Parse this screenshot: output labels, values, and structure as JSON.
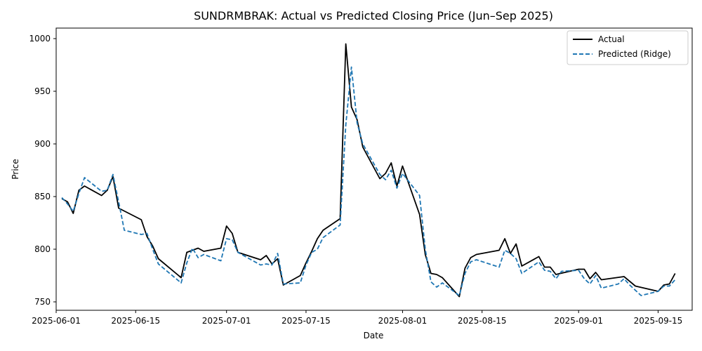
{
  "chart_data": {
    "type": "line",
    "title": "SUNDRMBRAK: Actual vs Predicted Closing Price (Jun–Sep 2025)",
    "xlabel": "Date",
    "ylabel": "Price",
    "xlim": [
      "2025-06-01",
      "2025-09-21"
    ],
    "ylim": [
      742,
      1010
    ],
    "x_ticks": [
      "2025-06-01",
      "2025-06-15",
      "2025-07-01",
      "2025-07-15",
      "2025-08-01",
      "2025-08-15",
      "2025-09-01",
      "2025-09-15"
    ],
    "y_ticks": [
      750,
      800,
      850,
      900,
      950,
      1000
    ],
    "grid": false,
    "legend_position": "top-right",
    "series": [
      {
        "name": "Actual",
        "color": "#000000",
        "style": "solid",
        "points": [
          [
            "2025-06-02",
            848
          ],
          [
            "2025-06-03",
            845
          ],
          [
            "2025-06-04",
            834
          ],
          [
            "2025-06-05",
            856
          ],
          [
            "2025-06-06",
            860
          ],
          [
            "2025-06-09",
            851
          ],
          [
            "2025-06-10",
            856
          ],
          [
            "2025-06-11",
            869
          ],
          [
            "2025-06-12",
            839
          ],
          [
            "2025-06-16",
            828
          ],
          [
            "2025-06-17",
            812
          ],
          [
            "2025-06-18",
            803
          ],
          [
            "2025-06-19",
            791
          ],
          [
            "2025-06-23",
            773
          ],
          [
            "2025-06-24",
            797
          ],
          [
            "2025-06-25",
            799
          ],
          [
            "2025-06-26",
            801
          ],
          [
            "2025-06-27",
            798
          ],
          [
            "2025-06-30",
            801
          ],
          [
            "2025-07-01",
            822
          ],
          [
            "2025-07-02",
            815
          ],
          [
            "2025-07-03",
            797
          ],
          [
            "2025-07-07",
            790
          ],
          [
            "2025-07-08",
            794
          ],
          [
            "2025-07-09",
            786
          ],
          [
            "2025-07-10",
            791
          ],
          [
            "2025-07-11",
            766
          ],
          [
            "2025-07-14",
            775
          ],
          [
            "2025-07-15",
            787
          ],
          [
            "2025-07-16",
            798
          ],
          [
            "2025-07-17",
            810
          ],
          [
            "2025-07-18",
            818
          ],
          [
            "2025-07-21",
            829
          ],
          [
            "2025-07-22",
            995
          ],
          [
            "2025-07-23",
            935
          ],
          [
            "2025-07-24",
            923
          ],
          [
            "2025-07-25",
            897
          ],
          [
            "2025-07-28",
            867
          ],
          [
            "2025-07-29",
            872
          ],
          [
            "2025-07-30",
            882
          ],
          [
            "2025-07-31",
            860
          ],
          [
            "2025-08-01",
            879
          ],
          [
            "2025-08-04",
            833
          ],
          [
            "2025-08-05",
            795
          ],
          [
            "2025-08-06",
            777
          ],
          [
            "2025-08-07",
            776
          ],
          [
            "2025-08-08",
            773
          ],
          [
            "2025-08-11",
            755
          ],
          [
            "2025-08-12",
            782
          ],
          [
            "2025-08-13",
            792
          ],
          [
            "2025-08-14",
            795
          ],
          [
            "2025-08-18",
            799
          ],
          [
            "2025-08-19",
            810
          ],
          [
            "2025-08-20",
            796
          ],
          [
            "2025-08-21",
            805
          ],
          [
            "2025-08-22",
            784
          ],
          [
            "2025-08-25",
            793
          ],
          [
            "2025-08-26",
            783
          ],
          [
            "2025-08-27",
            783
          ],
          [
            "2025-08-28",
            776
          ],
          [
            "2025-09-01",
            781
          ],
          [
            "2025-09-02",
            781
          ],
          [
            "2025-09-03",
            772
          ],
          [
            "2025-09-04",
            778
          ],
          [
            "2025-09-05",
            771
          ],
          [
            "2025-09-09",
            774
          ],
          [
            "2025-09-11",
            765
          ],
          [
            "2025-09-15",
            760
          ],
          [
            "2025-09-16",
            766
          ],
          [
            "2025-09-17",
            767
          ],
          [
            "2025-09-18",
            777
          ]
        ]
      },
      {
        "name": "Predicted (Ridge)",
        "color": "#1f77b4",
        "style": "dashed",
        "points": [
          [
            "2025-06-02",
            849
          ],
          [
            "2025-06-03",
            843
          ],
          [
            "2025-06-04",
            836
          ],
          [
            "2025-06-05",
            853
          ],
          [
            "2025-06-06",
            868
          ],
          [
            "2025-06-09",
            855
          ],
          [
            "2025-06-10",
            856
          ],
          [
            "2025-06-11",
            871
          ],
          [
            "2025-06-12",
            845
          ],
          [
            "2025-06-13",
            818
          ],
          [
            "2025-06-16",
            814
          ],
          [
            "2025-06-17",
            815
          ],
          [
            "2025-06-18",
            800
          ],
          [
            "2025-06-19",
            786
          ],
          [
            "2025-06-23",
            768
          ],
          [
            "2025-06-24",
            787
          ],
          [
            "2025-06-25",
            801
          ],
          [
            "2025-06-26",
            792
          ],
          [
            "2025-06-27",
            795
          ],
          [
            "2025-06-30",
            789
          ],
          [
            "2025-07-01",
            810
          ],
          [
            "2025-07-02",
            809
          ],
          [
            "2025-07-03",
            797
          ],
          [
            "2025-07-07",
            785
          ],
          [
            "2025-07-08",
            786
          ],
          [
            "2025-07-09",
            785
          ],
          [
            "2025-07-10",
            796
          ],
          [
            "2025-07-11",
            767
          ],
          [
            "2025-07-14",
            768
          ],
          [
            "2025-07-15",
            785
          ],
          [
            "2025-07-16",
            797
          ],
          [
            "2025-07-17",
            800
          ],
          [
            "2025-07-18",
            811
          ],
          [
            "2025-07-21",
            823
          ],
          [
            "2025-07-22",
            918
          ],
          [
            "2025-07-23",
            973
          ],
          [
            "2025-07-24",
            920
          ],
          [
            "2025-07-25",
            900
          ],
          [
            "2025-07-28",
            871
          ],
          [
            "2025-07-29",
            866
          ],
          [
            "2025-07-30",
            875
          ],
          [
            "2025-07-31",
            858
          ],
          [
            "2025-08-01",
            872
          ],
          [
            "2025-08-04",
            851
          ],
          [
            "2025-08-05",
            800
          ],
          [
            "2025-08-06",
            769
          ],
          [
            "2025-08-07",
            764
          ],
          [
            "2025-08-08",
            768
          ],
          [
            "2025-08-11",
            756
          ],
          [
            "2025-08-12",
            777
          ],
          [
            "2025-08-13",
            788
          ],
          [
            "2025-08-14",
            790
          ],
          [
            "2025-08-18",
            783
          ],
          [
            "2025-08-19",
            799
          ],
          [
            "2025-08-20",
            796
          ],
          [
            "2025-08-21",
            791
          ],
          [
            "2025-08-22",
            777
          ],
          [
            "2025-08-25",
            788
          ],
          [
            "2025-08-26",
            780
          ],
          [
            "2025-08-27",
            779
          ],
          [
            "2025-08-28",
            772
          ],
          [
            "2025-08-29",
            779
          ],
          [
            "2025-09-01",
            780
          ],
          [
            "2025-09-02",
            772
          ],
          [
            "2025-09-03",
            767
          ],
          [
            "2025-09-04",
            775
          ],
          [
            "2025-09-05",
            763
          ],
          [
            "2025-09-08",
            767
          ],
          [
            "2025-09-09",
            772
          ],
          [
            "2025-09-10",
            766
          ],
          [
            "2025-09-12",
            756
          ],
          [
            "2025-09-15",
            760
          ],
          [
            "2025-09-16",
            765
          ],
          [
            "2025-09-17",
            765
          ],
          [
            "2025-09-18",
            771
          ]
        ]
      }
    ]
  }
}
